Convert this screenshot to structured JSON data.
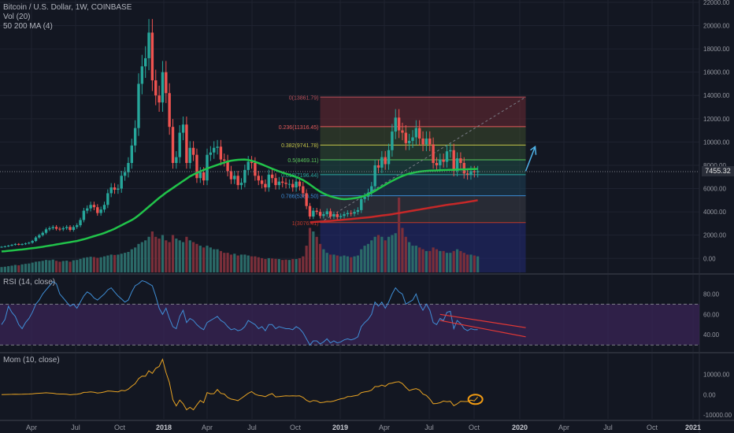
{
  "header": {
    "symbol_line": "Bitcoin / U.S. Dollar, 1W, COINBASE",
    "vol_label": "Vol (20)",
    "ma_label": "50 200 MA (4)"
  },
  "last_price": "7455.32",
  "chart_data": [
    {
      "type": "candlestick",
      "title": "Bitcoin / U.S. Dollar, 1W, COINBASE",
      "x_ticks": [
        "Apr",
        "Jul",
        "Oct",
        "2018",
        "Apr",
        "Jul",
        "Oct",
        "2019",
        "Apr",
        "Jul",
        "Oct",
        "2020",
        "Apr",
        "Jul",
        "Oct",
        "2021"
      ],
      "y_ticks": [
        "22000.00",
        "20000.00",
        "18000.00",
        "16000.00",
        "14000.00",
        "12000.00",
        "10000.00",
        "8000.00",
        "6000.00",
        "4000.00",
        "2000.00",
        "0.00"
      ],
      "ylim": [
        -1200,
        22200
      ],
      "last_price": 7455.32,
      "weekly_close": [
        1000,
        1040,
        1100,
        1170,
        1240,
        1190,
        1230,
        1290,
        1350,
        1500,
        1800,
        2000,
        2200,
        2500,
        2600,
        2700,
        2550,
        2500,
        2600,
        2700,
        2450,
        2700,
        2850,
        3300,
        4100,
        4300,
        4600,
        4400,
        3900,
        4200,
        4600,
        5600,
        6100,
        5900,
        6000,
        7100,
        7400,
        8200,
        9700,
        11200,
        15000,
        16500,
        17200,
        19400,
        15300,
        14000,
        13400,
        16000,
        14200,
        11300,
        8200,
        8700,
        10800,
        11500,
        8200,
        9500,
        8900,
        6900,
        7400,
        6700,
        8900,
        9100,
        9500,
        9600,
        8500,
        8400,
        7500,
        6800,
        7100,
        6300,
        6500,
        7600,
        8300,
        8200,
        7100,
        6700,
        6400,
        6100,
        7200,
        6900,
        6300,
        6600,
        6500,
        6400,
        6400,
        6100,
        6600,
        6200,
        5600,
        4500,
        3600,
        4100,
        4000,
        3650,
        3800,
        4050,
        3600,
        3800,
        3550,
        3650,
        3800,
        3900,
        3850,
        4000,
        4150,
        5100,
        5300,
        5650,
        6200,
        8000,
        7800,
        8700,
        8100,
        9300,
        10900,
        12100,
        11000,
        10800,
        9900,
        10100,
        10400,
        11200,
        10300,
        9800,
        10300,
        9800,
        8200,
        8000,
        8500,
        8300,
        9200,
        9300,
        7500,
        8600,
        8200,
        7300,
        7200,
        7500,
        7400,
        7500
      ],
      "volume": [
        300,
        320,
        350,
        380,
        420,
        400,
        450,
        480,
        500,
        550,
        600,
        620,
        650,
        700,
        680,
        720,
        650,
        600,
        640,
        660,
        600,
        680,
        700,
        760,
        820,
        850,
        880,
        860,
        820,
        850,
        900,
        950,
        1000,
        980,
        1000,
        1050,
        1100,
        1150,
        1300,
        1400,
        1600,
        1700,
        1800,
        2000,
        2300,
        2000,
        1900,
        2100,
        1800,
        1700,
        2100,
        1900,
        1800,
        1700,
        2000,
        1800,
        1700,
        1600,
        1500,
        1400,
        1500,
        1400,
        1300,
        1300,
        1200,
        1100,
        1100,
        1000,
        1050,
        950,
        1000,
        1000,
        950,
        900,
        900,
        850,
        800,
        750,
        800,
        780,
        760,
        750,
        700,
        720,
        700,
        750,
        750,
        800,
        900,
        1500,
        2500,
        2300,
        2000,
        1600,
        1300,
        1100,
        1000,
        1000,
        950,
        900,
        950,
        900,
        850,
        900,
        950,
        1300,
        1500,
        1600,
        1800,
        2000,
        2100,
        2000,
        1800,
        2000,
        2100,
        2200,
        4200,
        2500,
        2000,
        1700,
        1500,
        1500,
        1400,
        1300,
        1200,
        1200,
        1400,
        1300,
        1200,
        1200,
        1100,
        1100,
        1200,
        1300,
        1200,
        1100,
        1000,
        1000,
        950,
        900
      ],
      "ma50": [
        600,
        620,
        650,
        680,
        710,
        740,
        770,
        800,
        840,
        880,
        920,
        960,
        1000,
        1050,
        1100,
        1150,
        1200,
        1250,
        1300,
        1350,
        1400,
        1450,
        1500,
        1570,
        1650,
        1730,
        1820,
        1910,
        2000,
        2090,
        2190,
        2300,
        2420,
        2550,
        2700,
        2850,
        3000,
        3150,
        3300,
        3480,
        3700,
        3950,
        4200,
        4450,
        4700,
        4950,
        5200,
        5420,
        5650,
        5850,
        6050,
        6250,
        6450,
        6650,
        6850,
        7050,
        7200,
        7350,
        7480,
        7600,
        7720,
        7830,
        7940,
        8040,
        8140,
        8240,
        8330,
        8400,
        8440,
        8470,
        8490,
        8500,
        8460,
        8390,
        8300,
        8190,
        8080,
        7960,
        7830,
        7710,
        7590,
        7480,
        7380,
        7280,
        7190,
        7100,
        6990,
        6870,
        6730,
        6550,
        6350,
        6140,
        5930,
        5740,
        5580,
        5450,
        5340,
        5250,
        5180,
        5120,
        5090,
        5100,
        5130,
        5170,
        5220,
        5290,
        5380,
        5500,
        5640,
        5800,
        5980,
        6160,
        6330,
        6500,
        6660,
        6810,
        6950,
        7080,
        7190,
        7280,
        7350,
        7410,
        7460,
        7490,
        7520,
        7540,
        7550,
        7560,
        7580,
        7590,
        7600,
        7610,
        7620,
        7630,
        7640,
        7650,
        7660,
        7670,
        7680,
        7690
      ],
      "ma200": [
        null,
        null,
        null,
        null,
        null,
        null,
        null,
        null,
        null,
        null,
        null,
        null,
        null,
        null,
        null,
        null,
        null,
        null,
        null,
        null,
        null,
        null,
        null,
        null,
        null,
        null,
        null,
        null,
        null,
        null,
        null,
        null,
        null,
        null,
        null,
        null,
        null,
        null,
        null,
        null,
        null,
        null,
        null,
        null,
        null,
        null,
        null,
        null,
        null,
        null,
        null,
        null,
        null,
        null,
        null,
        null,
        null,
        null,
        null,
        null,
        null,
        null,
        null,
        null,
        null,
        null,
        null,
        null,
        null,
        null,
        null,
        null,
        null,
        null,
        null,
        null,
        null,
        null,
        null,
        null,
        null,
        null,
        null,
        null,
        null,
        null,
        null,
        null,
        null,
        null,
        3100,
        3120,
        3140,
        3160,
        3180,
        3200,
        3220,
        3250,
        3280,
        3300,
        3330,
        3360,
        3380,
        3410,
        3440,
        3470,
        3500,
        3530,
        3560,
        3600,
        3640,
        3680,
        3720,
        3760,
        3800,
        3850,
        3900,
        3950,
        4000,
        4050,
        4100,
        4150,
        4200,
        4250,
        4300,
        4350,
        4400,
        4450,
        4500,
        4550,
        4600,
        4640,
        4680,
        4720,
        4760,
        4800,
        4850,
        4900,
        4950,
        5000
      ],
      "fibonacci": [
        {
          "label": "0(13861.79)",
          "value": 13861.79,
          "color": "#b9505a",
          "fill": "#6b2a33"
        },
        {
          "label": "0.236(11316.45)",
          "value": 11316.45,
          "color": "#e55b5b",
          "fill": "#3d4a2c"
        },
        {
          "label": "0.382(9741.78)",
          "value": 9741.78,
          "color": "#c8c84a",
          "fill": "#2f4d33"
        },
        {
          "label": "0.5(8469.11)",
          "value": 8469.11,
          "color": "#5cc85c",
          "fill": "#1f4d45"
        },
        {
          "label": "0.618(7196.44)",
          "value": 7196.44,
          "color": "#2ca6a0",
          "fill": "#1e3f55"
        },
        {
          "label": "0.786(5386.50)",
          "value": 5386.5,
          "color": "#3d8bd6",
          "fill": "#3a3d46"
        },
        {
          "label": "1(3076.41)",
          "value": 3076.41,
          "color": "#c0392b",
          "fill": "#232a75"
        }
      ],
      "fib_box": {
        "x_start_week": 93,
        "x_end_week": 153
      }
    },
    {
      "type": "line",
      "title": "RSI (14, close)",
      "y_ticks": [
        "80.00",
        "60.00",
        "40.00"
      ],
      "ylim": [
        24,
        98
      ],
      "bands": [
        70,
        30
      ],
      "values": [
        50,
        55,
        68,
        62,
        58,
        50,
        46,
        52,
        56,
        62,
        70,
        74,
        80,
        84,
        88,
        92,
        90,
        80,
        76,
        72,
        68,
        70,
        66,
        72,
        78,
        82,
        80,
        76,
        74,
        77,
        80,
        84,
        86,
        82,
        78,
        75,
        72,
        74,
        82,
        88,
        90,
        93,
        92,
        90,
        88,
        78,
        66,
        60,
        66,
        56,
        48,
        46,
        58,
        64,
        52,
        56,
        54,
        50,
        47,
        45,
        52,
        54,
        56,
        58,
        54,
        52,
        48,
        45,
        46,
        44,
        45,
        48,
        54,
        52,
        50,
        46,
        48,
        44,
        50,
        50,
        46,
        48,
        47,
        46,
        46,
        45,
        48,
        46,
        42,
        36,
        30,
        34,
        34,
        31,
        33,
        36,
        32,
        34,
        32,
        33,
        35,
        36,
        35,
        36,
        38,
        48,
        52,
        55,
        60,
        72,
        68,
        72,
        66,
        72,
        80,
        86,
        82,
        80,
        70,
        72,
        74,
        80,
        70,
        64,
        70,
        64,
        52,
        50,
        56,
        54,
        62,
        63,
        46,
        54,
        51,
        46,
        44,
        46,
        45,
        45
      ],
      "trendline_upper": [
        [
          128,
          60
        ],
        [
          153,
          47
        ]
      ],
      "trendline_lower": [
        [
          128,
          54
        ],
        [
          153,
          38
        ]
      ]
    },
    {
      "type": "line",
      "title": "Mom (10, close)",
      "y_ticks": [
        "10000.00",
        "0.00",
        "-10000.00"
      ],
      "ylim": [
        -12000,
        20000
      ],
      "values": [
        0,
        50,
        100,
        150,
        200,
        150,
        180,
        250,
        300,
        400,
        600,
        700,
        800,
        900,
        800,
        700,
        400,
        300,
        300,
        200,
        -100,
        100,
        200,
        500,
        1100,
        1200,
        1400,
        1200,
        800,
        1000,
        1300,
        1800,
        1700,
        1500,
        1400,
        2100,
        1900,
        2700,
        4200,
        5400,
        7900,
        9200,
        9100,
        11800,
        10500,
        13000,
        14000,
        17500,
        11000,
        6000,
        -2500,
        -5600,
        -2700,
        -4500,
        -7500,
        -6300,
        -7500,
        -5100,
        -2900,
        -4000,
        1000,
        400,
        500,
        2500,
        600,
        300,
        -1400,
        -2200,
        -2500,
        -3000,
        -1800,
        -600,
        700,
        1500,
        200,
        -400,
        -600,
        -1000,
        -100,
        500,
        -1100,
        -1000,
        -800,
        -600,
        -700,
        -600,
        -700,
        -600,
        -1400,
        -2800,
        -3600,
        -2900,
        -3100,
        -4000,
        -3800,
        -3400,
        -3500,
        -3200,
        -2600,
        -2100,
        -1800,
        -1000,
        -900,
        -600,
        -300,
        1000,
        1400,
        1600,
        2200,
        4000,
        4000,
        4700,
        4100,
        5400,
        5700,
        6200,
        6400,
        5500,
        3600,
        2000,
        2600,
        3000,
        2300,
        300,
        -400,
        -2200,
        -4500,
        -4400,
        -4000,
        -3200,
        -3500,
        -3300,
        -5500,
        -4600,
        -3300,
        -3400,
        -3400,
        -2700,
        -3100,
        -1200
      ]
    }
  ]
}
